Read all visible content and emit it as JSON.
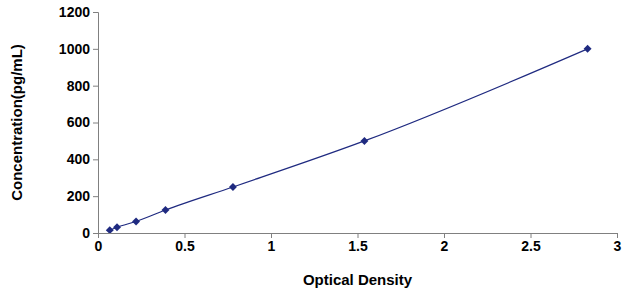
{
  "chart_data": {
    "type": "line",
    "marker": "diamond",
    "color": "#1f2a80",
    "x_label": "Optical Density",
    "y_label": "Concentration(pg/mL)",
    "x": [
      0.068,
      0.11,
      0.22,
      0.39,
      0.78,
      1.54,
      2.83
    ],
    "values": [
      15.6,
      31.2,
      62.5,
      125,
      250,
      500,
      1000
    ],
    "xlim": [
      0,
      3
    ],
    "xticks": [
      0,
      0.5,
      1,
      1.5,
      2,
      2.5,
      3
    ],
    "ylim": [
      0,
      1200
    ],
    "yticks": [
      0,
      200,
      400,
      600,
      800,
      1000,
      1200
    ],
    "grid": false
  }
}
